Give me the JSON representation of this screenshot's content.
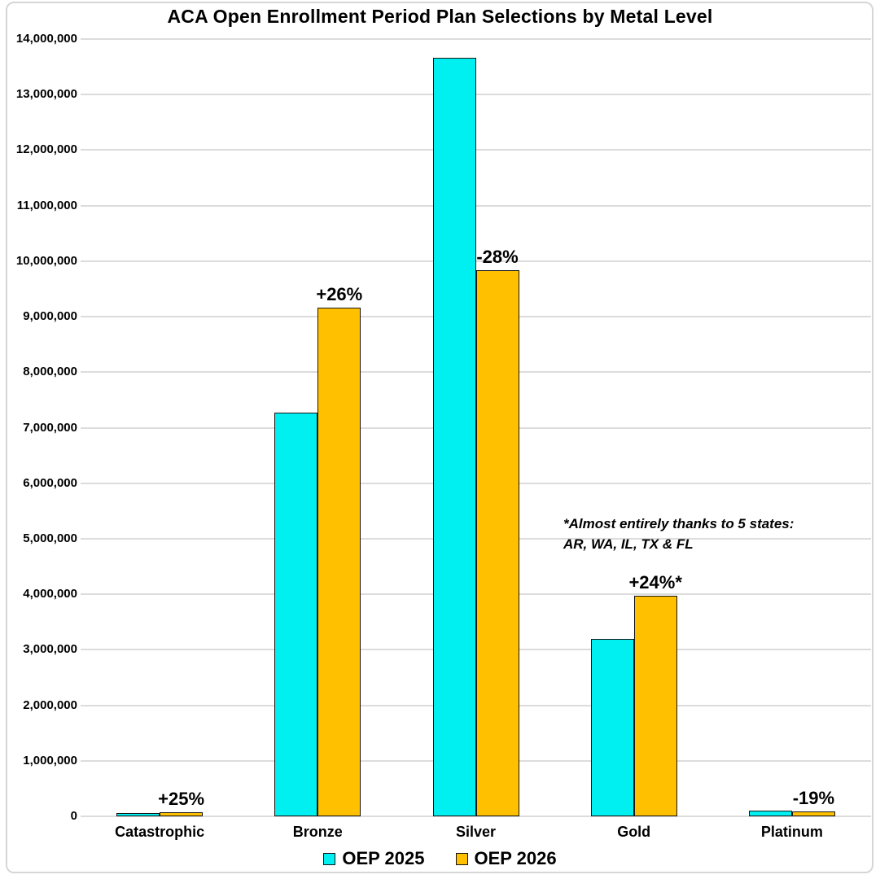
{
  "title": "ACA Open Enrollment Period Plan Selections by Metal Level",
  "chart_data": {
    "type": "bar",
    "categories": [
      "Catastrophic",
      "Bronze",
      "Silver",
      "Gold",
      "Platinum"
    ],
    "series": [
      {
        "name": "OEP 2025",
        "color": "#00F0F2",
        "values": [
          55000,
          7270000,
          13660000,
          3200000,
          100000
        ]
      },
      {
        "name": "OEP 2026",
        "color": "#FFC000",
        "values": [
          69000,
          9160000,
          9840000,
          3970000,
          81000
        ]
      }
    ],
    "bar_labels": [
      "+25%",
      "+26%",
      "-28%",
      "+24%*",
      "-19%"
    ],
    "annotation": {
      "line1": "*Almost entirely thanks to 5 states:",
      "line2": "AR, WA, IL, TX & FL"
    },
    "ylim": [
      0,
      14000000
    ],
    "ytick_step": 1000000,
    "ytick_labels": [
      "0",
      "1,000,000",
      "2,000,000",
      "3,000,000",
      "4,000,000",
      "5,000,000",
      "6,000,000",
      "7,000,000",
      "8,000,000",
      "9,000,000",
      "10,000,000",
      "11,000,000",
      "12,000,000",
      "13,000,000",
      "14,000,000"
    ],
    "grid": true,
    "legend_position": "bottom",
    "colors": {
      "grid": "#dcdcdc",
      "bar_border": "#141414",
      "text": "#000000",
      "frame_border": "#d8d5d5"
    }
  }
}
